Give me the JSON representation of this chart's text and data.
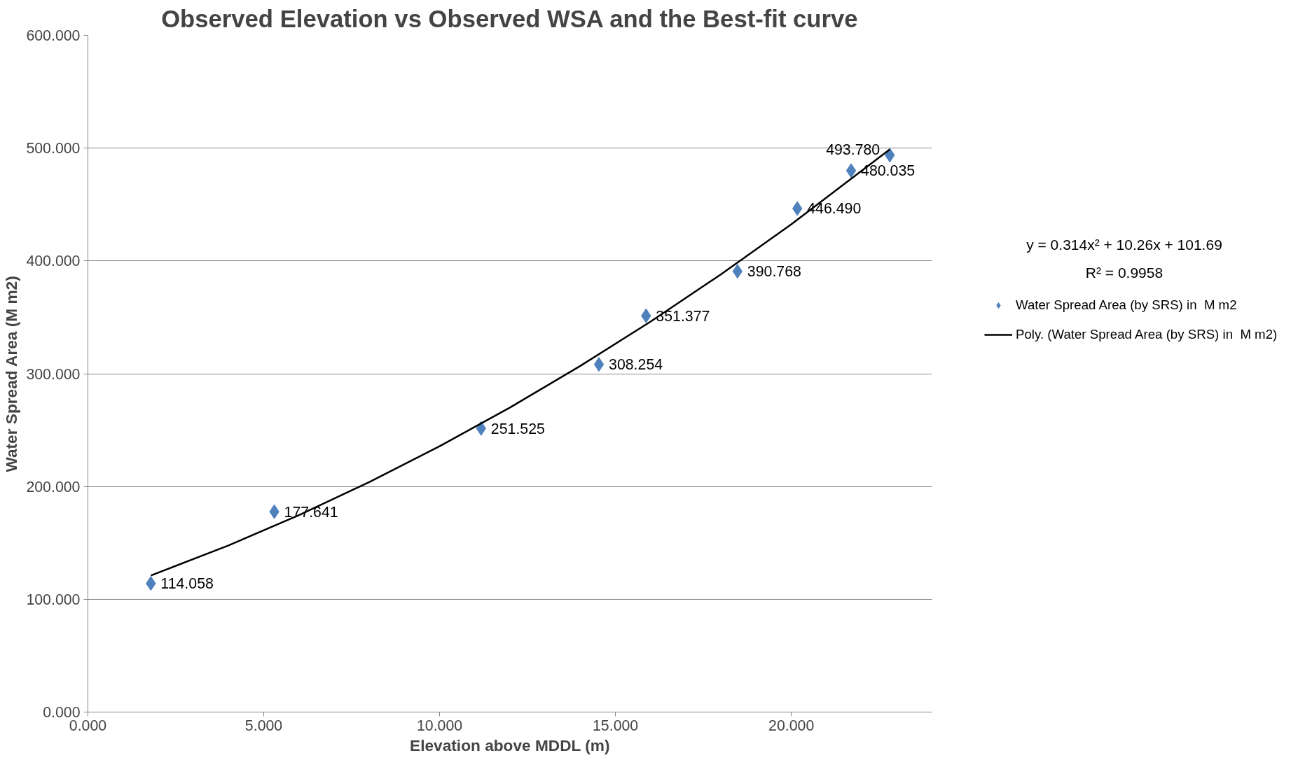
{
  "chart_data": {
    "type": "scatter",
    "title": "Observed Elevation vs Observed WSA and the Best-fit curve",
    "xlabel": "Elevation above MDDL (m)",
    "ylabel": "Water Spread Area (M m2)",
    "x": [
      1.79,
      5.3,
      11.18,
      14.53,
      15.87,
      18.47,
      20.17,
      21.7,
      22.8
    ],
    "series": [
      {
        "name": "Water Spread Area (by SRS) in  M m2",
        "color": "#4f81bd",
        "marker": "diamond",
        "values": [
          114.058,
          177.641,
          251.525,
          308.254,
          351.377,
          390.768,
          446.49,
          480.035,
          493.78
        ],
        "value_labels": [
          "114.058",
          "177.641",
          "251.525",
          "308.254",
          "351.377",
          "390.768",
          "446.490",
          "480.035",
          "493.780"
        ]
      },
      {
        "name": "Poly. (Water Spread Area (by SRS) in  M m2)",
        "type": "line",
        "color": "#000000",
        "line_style": "solid",
        "x": [
          1.79,
          4,
          6,
          8,
          10,
          12,
          14,
          16,
          18,
          20,
          22.8
        ],
        "values": [
          121.1,
          147.8,
          174.6,
          203.9,
          235.7,
          270.0,
          306.9,
          346.2,
          388.1,
          432.5,
          498.9
        ]
      }
    ],
    "xlim": [
      0,
      24
    ],
    "xticks": [
      {
        "value": 0,
        "label": "0.000"
      },
      {
        "value": 5,
        "label": "5.000"
      },
      {
        "value": 10,
        "label": "10.000"
      },
      {
        "value": 15,
        "label": "15.000"
      },
      {
        "value": 20,
        "label": "20.000"
      }
    ],
    "ylim": [
      0,
      600
    ],
    "yticks": [
      {
        "value": 0,
        "label": "0.000"
      },
      {
        "value": 100,
        "label": "100.000"
      },
      {
        "value": 200,
        "label": "200.000"
      },
      {
        "value": 300,
        "label": "300.000"
      },
      {
        "value": 400,
        "label": "400.000"
      },
      {
        "value": 500,
        "label": "500.000"
      },
      {
        "value": 600,
        "label": "600.000"
      }
    ],
    "grid": "y",
    "legend": "right",
    "annotations": [
      "y = 0.314x² + 10.26x + 101.69",
      "R² = 0.9958"
    ]
  }
}
